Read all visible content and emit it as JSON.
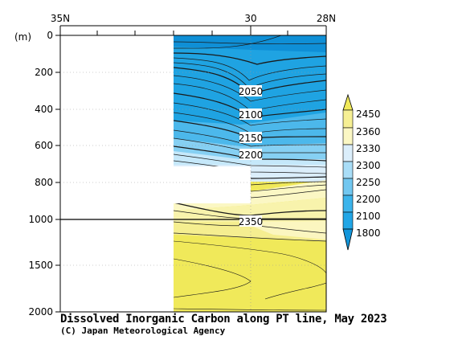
{
  "chart_data": {
    "type": "heatmap",
    "title": "Dissolved Inorganic Carbon along PT line, May 2023",
    "credit": "(C) Japan Meteorological Agency",
    "ylabel": "(m)",
    "x_axis": {
      "ticks": [
        "35N",
        "30",
        "28N"
      ],
      "range_lat": [
        35,
        28
      ]
    },
    "y_axis": {
      "ticks": [
        0,
        200,
        400,
        600,
        800,
        1000,
        1500,
        2000
      ],
      "range": [
        0,
        2000
      ],
      "note": "linear 0-1000 m upper panel, compressed 1000-2000 m lower panel"
    },
    "contour_labels": [
      {
        "text": "2050",
        "depth": 300
      },
      {
        "text": "2100",
        "depth": 425
      },
      {
        "text": "2150",
        "depth": 550
      },
      {
        "text": "2200",
        "depth": 655
      },
      {
        "text": "2350",
        "depth": 1010
      }
    ],
    "colorbar": {
      "levels": [
        "1800",
        "2100",
        "2200",
        "2250",
        "2300",
        "2330",
        "2360",
        "2450"
      ],
      "colors": [
        "#1296db",
        "#21a6e6",
        "#3cb4eb",
        "#72c7f0",
        "#a9ddf7",
        "#dbeefb",
        "#fbf7c4",
        "#f6ef94",
        "#f0e95a"
      ]
    }
  }
}
